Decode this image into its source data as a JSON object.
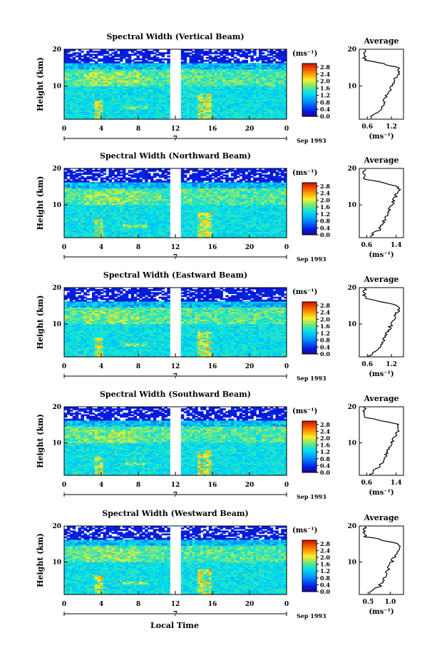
{
  "figure": {
    "xlabel": "Local Time",
    "y_axis_label": "Height (km)",
    "date_label": "Sep 1993",
    "day_label": "7",
    "colorbar_unit": "(ms⁻¹)",
    "average_title": "Average",
    "average_unit": "(ms⁻¹)"
  },
  "chart_data": [
    {
      "type": "heatmap",
      "title": "Spectral Width (Vertical Beam)",
      "ylabel": "Height (km)",
      "x_ticks": [
        "0",
        "4",
        "8",
        "12",
        "16",
        "20",
        "0"
      ],
      "y_ticks": [
        "20",
        "10"
      ],
      "xlim": [
        0,
        24
      ],
      "ylim": [
        1,
        20
      ],
      "data_gap_hours": [
        11.6,
        12.6
      ],
      "colorbar": {
        "ticks": [
          "2.8",
          "2.4",
          "2.0",
          "1.6",
          "1.2",
          "0.8",
          "0.4",
          "0.0"
        ],
        "range": [
          0,
          3.0
        ]
      },
      "profile": {
        "title": "Average",
        "xlabel": "(ms⁻¹)",
        "x_ticks": [
          "0.6",
          "1.2"
        ],
        "y_ticks": [
          "20",
          "10"
        ],
        "xlim": [
          0.4,
          1.5
        ]
      }
    },
    {
      "type": "heatmap",
      "title": "Spectral Width (Northward Beam)",
      "ylabel": "Height (km)",
      "x_ticks": [
        "0",
        "4",
        "8",
        "12",
        "16",
        "20",
        "0"
      ],
      "y_ticks": [
        "20",
        "10"
      ],
      "xlim": [
        0,
        24
      ],
      "ylim": [
        1,
        20
      ],
      "data_gap_hours": [
        11.6,
        12.6
      ],
      "colorbar": {
        "ticks": [
          "2.8",
          "2.4",
          "2.0",
          "1.6",
          "1.2",
          "0.8",
          "0.4",
          "0.0"
        ],
        "range": [
          0,
          3.0
        ]
      },
      "profile": {
        "title": "Average",
        "xlabel": "(ms⁻¹)",
        "x_ticks": [
          "0.6",
          "1.4"
        ],
        "y_ticks": [
          "20",
          "10"
        ],
        "xlim": [
          0.4,
          1.6
        ]
      }
    },
    {
      "type": "heatmap",
      "title": "Spectral Width (Eastward Beam)",
      "ylabel": "Height (km)",
      "x_ticks": [
        "0",
        "4",
        "8",
        "12",
        "16",
        "20",
        "0"
      ],
      "y_ticks": [
        "20",
        "10"
      ],
      "xlim": [
        0,
        24
      ],
      "ylim": [
        1,
        20
      ],
      "data_gap_hours": [
        11.6,
        12.6
      ],
      "colorbar": {
        "ticks": [
          "2.8",
          "2.4",
          "2.0",
          "1.6",
          "1.2",
          "0.8",
          "0.4",
          "0.0"
        ],
        "range": [
          0,
          3.0
        ]
      },
      "profile": {
        "title": "Average",
        "xlabel": "(ms⁻¹)",
        "x_ticks": [
          "0.6",
          "1.2"
        ],
        "y_ticks": [
          "20",
          "10"
        ],
        "xlim": [
          0.4,
          1.5
        ]
      }
    },
    {
      "type": "heatmap",
      "title": "Spectral Width (Southward Beam)",
      "ylabel": "Height (km)",
      "x_ticks": [
        "0",
        "4",
        "8",
        "12",
        "16",
        "20",
        "0"
      ],
      "y_ticks": [
        "20",
        "10"
      ],
      "xlim": [
        0,
        24
      ],
      "ylim": [
        1,
        20
      ],
      "data_gap_hours": [
        11.6,
        12.6
      ],
      "colorbar": {
        "ticks": [
          "2.8",
          "2.4",
          "2.0",
          "1.6",
          "1.2",
          "0.8",
          "0.4",
          "0.0"
        ],
        "range": [
          0,
          3.0
        ]
      },
      "profile": {
        "title": "Average",
        "xlabel": "(ms⁻¹)",
        "x_ticks": [
          "0.6",
          "1.4"
        ],
        "y_ticks": [
          "20",
          "10"
        ],
        "xlim": [
          0.4,
          1.6
        ]
      }
    },
    {
      "type": "heatmap",
      "title": "Spectral Width (Westward Beam)",
      "ylabel": "Height (km)",
      "x_ticks": [
        "0",
        "4",
        "8",
        "12",
        "16",
        "20",
        "0"
      ],
      "y_ticks": [
        "20",
        "10"
      ],
      "xlim": [
        0,
        24
      ],
      "ylim": [
        1,
        20
      ],
      "data_gap_hours": [
        11.6,
        12.6
      ],
      "colorbar": {
        "ticks": [
          "2.8",
          "2.4",
          "2.0",
          "1.6",
          "1.2",
          "0.8",
          "0.4",
          "0.0"
        ],
        "range": [
          0,
          3.0
        ]
      },
      "profile": {
        "title": "Average",
        "xlabel": "(ms⁻¹)",
        "x_ticks": [
          "0.5",
          "1.0"
        ],
        "y_ticks": [
          "20",
          "10"
        ],
        "xlim": [
          0.3,
          1.3
        ]
      }
    }
  ]
}
